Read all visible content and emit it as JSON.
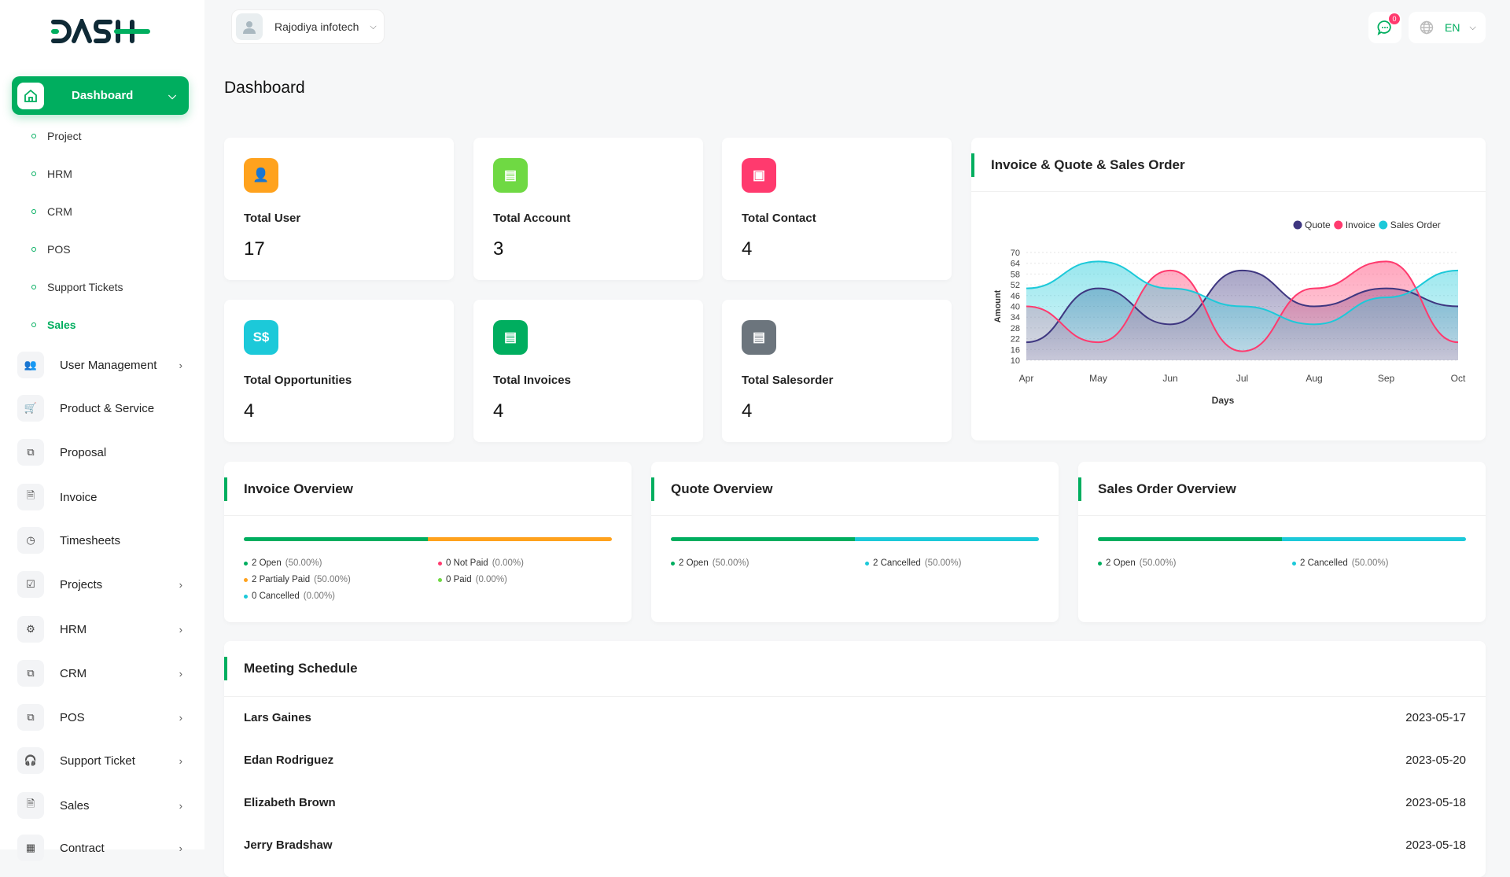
{
  "brand": {
    "logo_text": "DASH"
  },
  "header": {
    "company": "Rajodiya infotech",
    "notification_count": "0",
    "language": "EN"
  },
  "sidebar": {
    "active": {
      "label": "Dashboard",
      "icon": "home-icon"
    },
    "subitems": [
      {
        "label": "Project"
      },
      {
        "label": "HRM"
      },
      {
        "label": "CRM"
      },
      {
        "label": "POS"
      },
      {
        "label": "Support Tickets"
      },
      {
        "label": "Sales",
        "active": true
      }
    ],
    "items": [
      {
        "label": "User Management",
        "icon": "users-icon",
        "chevron": true
      },
      {
        "label": "Product & Service",
        "icon": "cart-icon",
        "chevron": false
      },
      {
        "label": "Proposal",
        "icon": "proposal-icon",
        "chevron": false
      },
      {
        "label": "Invoice",
        "icon": "file-icon",
        "chevron": false
      },
      {
        "label": "Timesheets",
        "icon": "clock-icon",
        "chevron": false
      },
      {
        "label": "Projects",
        "icon": "checklist-icon",
        "chevron": true
      },
      {
        "label": "HRM",
        "icon": "hrm-icon",
        "chevron": true
      },
      {
        "label": "CRM",
        "icon": "layers-icon",
        "chevron": true
      },
      {
        "label": "POS",
        "icon": "layers-icon",
        "chevron": true
      },
      {
        "label": "Support Ticket",
        "icon": "headphones-icon",
        "chevron": true
      },
      {
        "label": "Sales",
        "icon": "file-icon",
        "chevron": true
      },
      {
        "label": "Contract",
        "icon": "contract-icon",
        "chevron": true
      }
    ]
  },
  "page": {
    "title": "Dashboard"
  },
  "stats": [
    {
      "label": "Total User",
      "value": "17",
      "color": "#ffa21d",
      "glyph": "👤",
      "icon": "user-icon"
    },
    {
      "label": "Total Account",
      "value": "3",
      "color": "#6fd943",
      "glyph": "▤",
      "icon": "account-icon"
    },
    {
      "label": "Total Contact",
      "value": "4",
      "color": "#ff3a6e",
      "glyph": "▣",
      "icon": "contact-icon"
    },
    {
      "label": "Total Opportunities",
      "value": "4",
      "color": "#1cc9d9",
      "glyph": "S$",
      "icon": "money-icon"
    },
    {
      "label": "Total Invoices",
      "value": "4",
      "color": "#00ae5f",
      "glyph": "▤",
      "icon": "invoice-icon"
    },
    {
      "label": "Total Salesorder",
      "value": "4",
      "color": "#6c757d",
      "glyph": "▤",
      "icon": "salesorder-icon"
    }
  ],
  "chart_data": {
    "type": "area",
    "title": "Invoice & Quote & Sales Order",
    "xlabel": "Days",
    "ylabel": "Amount",
    "categories": [
      "Apr",
      "May",
      "Jun",
      "Jul",
      "Aug",
      "Sep",
      "Oct"
    ],
    "yticks": [
      10,
      16,
      22,
      28,
      34,
      40,
      46,
      52,
      58,
      64,
      70
    ],
    "ylim": [
      10,
      70
    ],
    "legend_position": "top-right",
    "grid": true,
    "series": [
      {
        "name": "Quote",
        "color": "#3e3680",
        "values": [
          20,
          50,
          30,
          60,
          40,
          50,
          40
        ]
      },
      {
        "name": "Invoice",
        "color": "#ff3a6e",
        "values": [
          40,
          20,
          60,
          15,
          50,
          65,
          20
        ]
      },
      {
        "name": "Sales Order",
        "color": "#1cc9d9",
        "values": [
          50,
          65,
          50,
          40,
          30,
          45,
          60
        ]
      }
    ]
  },
  "overviews": [
    {
      "title": "Invoice Overview",
      "bar": [
        {
          "pct": 50,
          "color": "#00ae5f"
        },
        {
          "pct": 50,
          "color": "#ffa21d"
        }
      ],
      "legend": [
        {
          "text": "2 Open",
          "pct": "(50.00%)",
          "color": "#00ae5f"
        },
        {
          "text": "0 Not Paid",
          "pct": "(0.00%)",
          "color": "#ff3a6e"
        },
        {
          "text": "2 Partialy Paid",
          "pct": "(50.00%)",
          "color": "#ffa21d"
        },
        {
          "text": "0 Paid",
          "pct": "(0.00%)",
          "color": "#6fd943"
        },
        {
          "text": "0 Cancelled",
          "pct": "(0.00%)",
          "color": "#1cc9d9"
        }
      ]
    },
    {
      "title": "Quote Overview",
      "bar": [
        {
          "pct": 50,
          "color": "#00ae5f"
        },
        {
          "pct": 50,
          "color": "#1cc9d9"
        }
      ],
      "legend": [
        {
          "text": "2 Open",
          "pct": "(50.00%)",
          "color": "#00ae5f"
        },
        {
          "text": "2 Cancelled",
          "pct": "(50.00%)",
          "color": "#1cc9d9"
        }
      ]
    },
    {
      "title": "Sales Order Overview",
      "bar": [
        {
          "pct": 50,
          "color": "#00ae5f"
        },
        {
          "pct": 50,
          "color": "#1cc9d9"
        }
      ],
      "legend": [
        {
          "text": "2 Open",
          "pct": "(50.00%)",
          "color": "#00ae5f"
        },
        {
          "text": "2 Cancelled",
          "pct": "(50.00%)",
          "color": "#1cc9d9"
        }
      ]
    }
  ],
  "meetings": {
    "title": "Meeting Schedule",
    "rows": [
      {
        "name": "Lars Gaines",
        "date": "2023-05-17"
      },
      {
        "name": "Edan Rodriguez",
        "date": "2023-05-20"
      },
      {
        "name": "Elizabeth Brown",
        "date": "2023-05-18"
      },
      {
        "name": "Jerry Bradshaw",
        "date": "2023-05-18"
      }
    ]
  }
}
